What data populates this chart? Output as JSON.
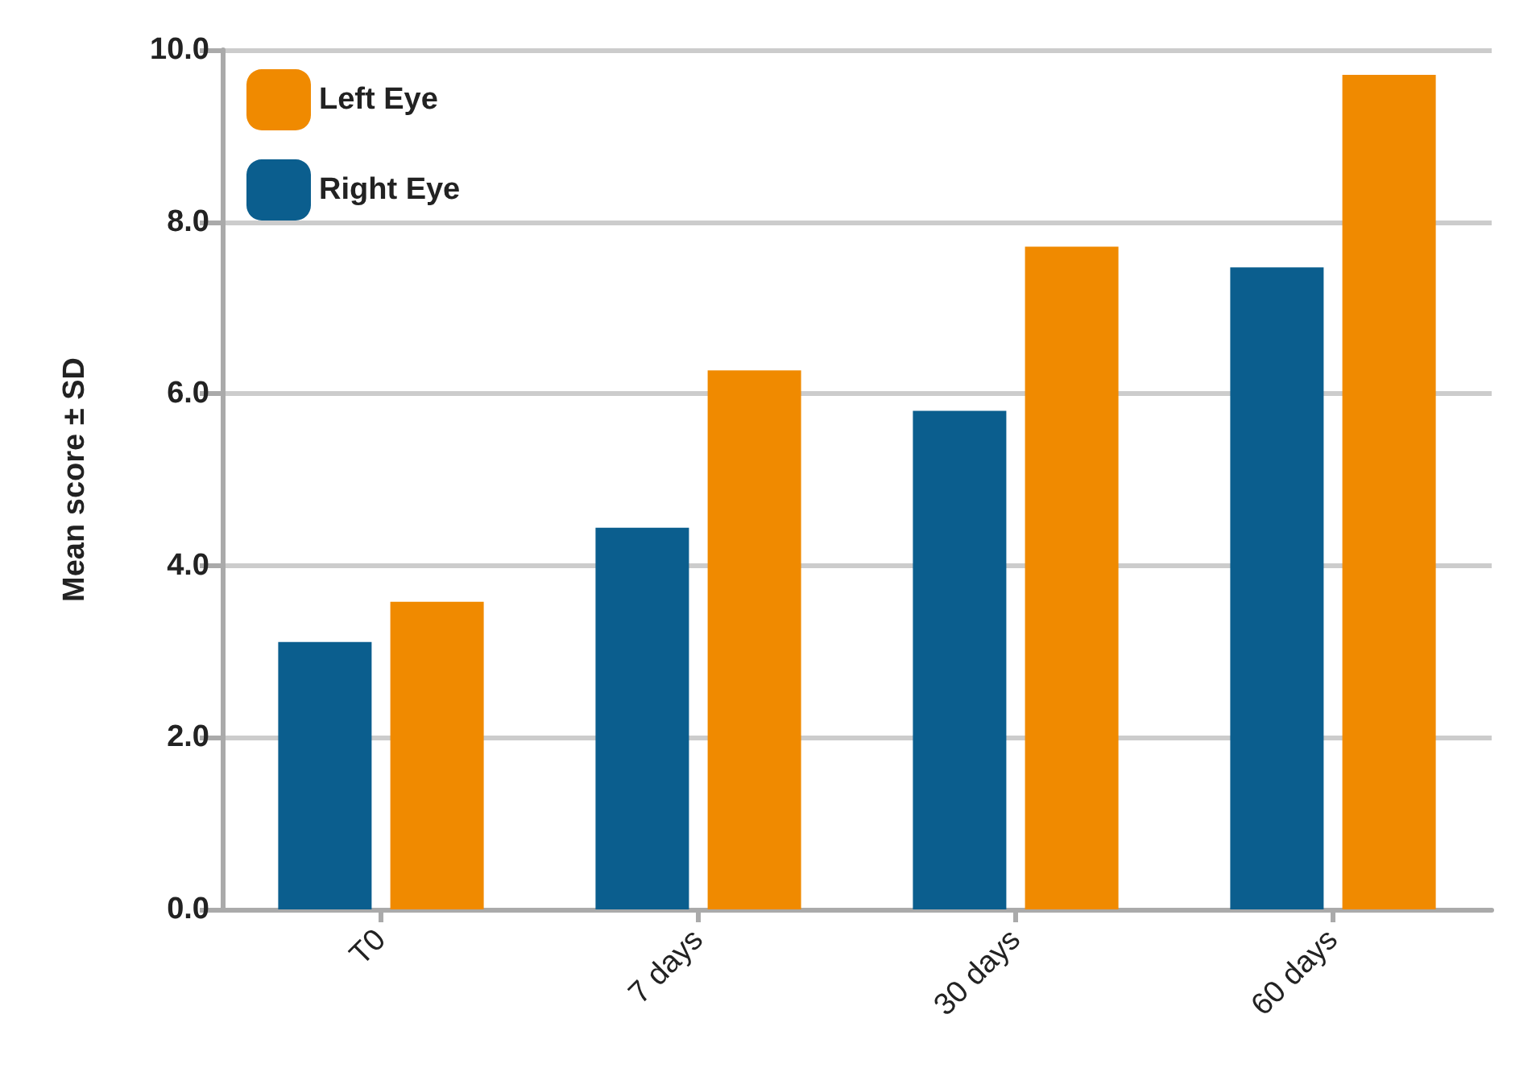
{
  "chart_data": {
    "type": "bar",
    "ylabel": "Mean score ± SD",
    "categories": [
      "T0",
      "7 days",
      "30 days",
      "60 days"
    ],
    "series": [
      {
        "name": "Right Eye",
        "color": "#0b5e8e",
        "values": [
          3.11,
          4.44,
          5.8,
          7.47
        ]
      },
      {
        "name": "Left Eye",
        "color": "#f08a00",
        "values": [
          3.58,
          6.27,
          7.71,
          9.71
        ]
      }
    ],
    "ylim": [
      0,
      10
    ],
    "yticks": [
      {
        "value": 0,
        "label": "0.0"
      },
      {
        "value": 2,
        "label": "2.0"
      },
      {
        "value": 4,
        "label": "4.0"
      },
      {
        "value": 6,
        "label": "6.0"
      },
      {
        "value": 8,
        "label": "8.0"
      },
      {
        "value": 10,
        "label": "10.0"
      }
    ],
    "grid": "y",
    "legend": "top left"
  }
}
